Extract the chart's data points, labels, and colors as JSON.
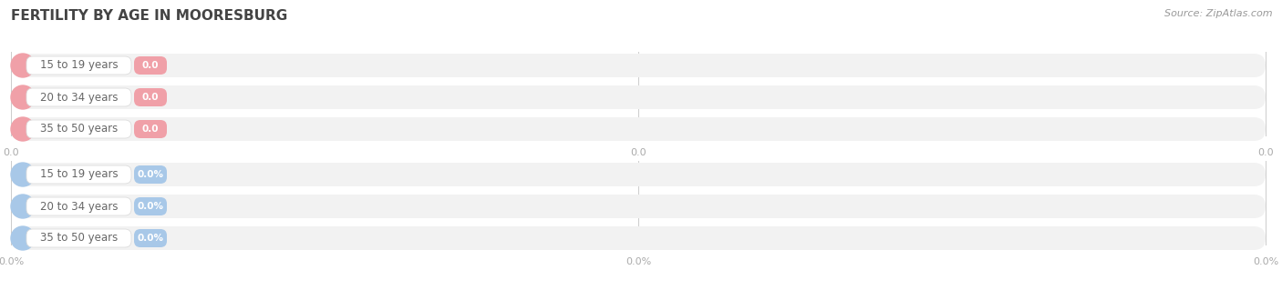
{
  "title": "FERTILITY BY AGE IN MOORESBURG",
  "source_text": "Source: ZipAtlas.com",
  "top_section": {
    "categories": [
      "15 to 19 years",
      "20 to 34 years",
      "35 to 50 years"
    ],
    "values": [
      0.0,
      0.0,
      0.0
    ],
    "bar_color": "#f0a0a8",
    "track_color": "#f2f2f2",
    "tick_labels": [
      "0.0",
      "0.0",
      "0.0"
    ]
  },
  "bottom_section": {
    "categories": [
      "15 to 19 years",
      "20 to 34 years",
      "35 to 50 years"
    ],
    "values": [
      0.0,
      0.0,
      0.0
    ],
    "bar_color": "#a8c8e8",
    "track_color": "#f2f2f2",
    "tick_labels": [
      "0.0%",
      "0.0%",
      "0.0%"
    ]
  },
  "bg_color": "#ffffff",
  "title_fontsize": 11,
  "label_fontsize": 8.5,
  "value_fontsize": 7.5,
  "tick_fontsize": 8,
  "source_fontsize": 8
}
